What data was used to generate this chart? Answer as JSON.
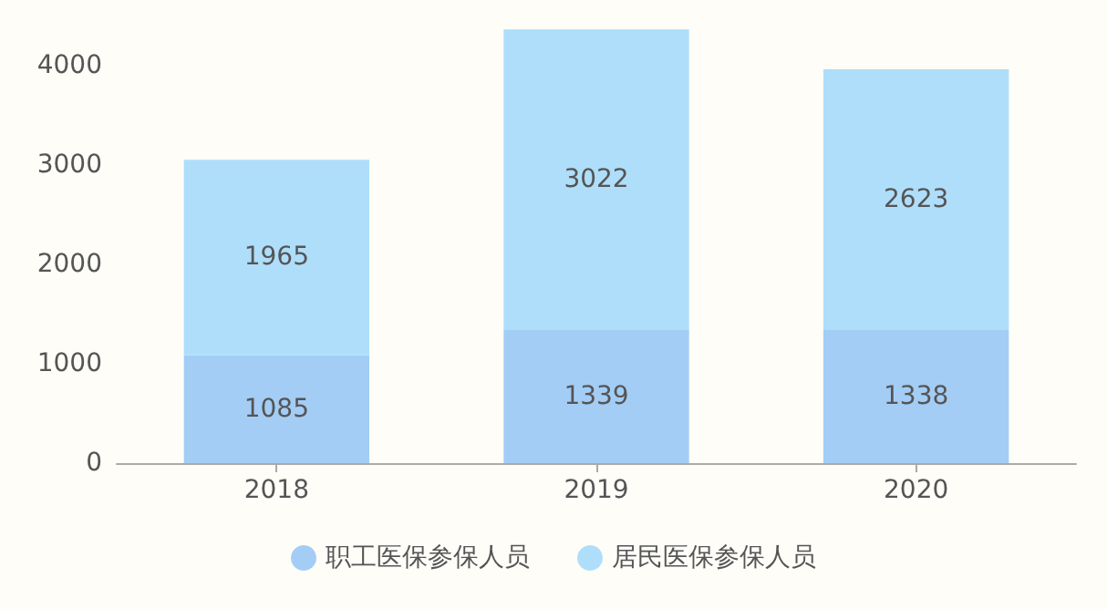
{
  "chart_data": {
    "type": "bar",
    "stacked": true,
    "categories": [
      "2018",
      "2019",
      "2020"
    ],
    "series": [
      {
        "name": "职工医保参保人员",
        "color": "#a3cdf5",
        "values": [
          1085,
          1339,
          1338
        ]
      },
      {
        "name": "居民医保参保人员",
        "color": "#afdefa",
        "values": [
          1965,
          3022,
          2623
        ]
      }
    ],
    "ylim": [
      0,
      4400
    ],
    "yticks": [
      0,
      1000,
      2000,
      3000,
      4000
    ],
    "grid": false,
    "legend": "bottom",
    "data_labels": true
  }
}
